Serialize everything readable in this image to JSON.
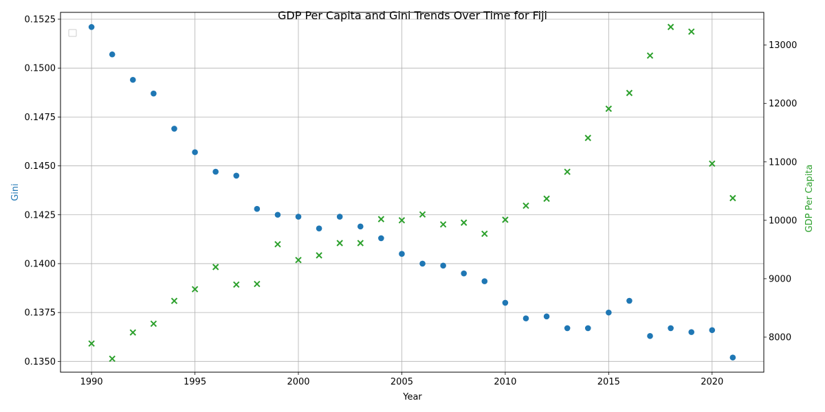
{
  "chart_data": {
    "type": "scatter",
    "title": "GDP Per Capita and Gini Trends Over Time for Fiji",
    "xlabel": "Year",
    "ylabel_left": "Gini",
    "ylabel_right": "GDP Per Capita",
    "xlim": [
      1988.5,
      2022.5
    ],
    "ylim_left": [
      0.13445,
      0.15285
    ],
    "ylim_right": [
      7400,
      13560
    ],
    "x_ticks": [
      1990,
      1995,
      2000,
      2005,
      2010,
      2015,
      2020
    ],
    "y_ticks_left": [
      "0.1350",
      "0.1375",
      "0.1400",
      "0.1425",
      "0.1450",
      "0.1475",
      "0.1500",
      "0.1525"
    ],
    "y_ticks_left_values": [
      0.135,
      0.1375,
      0.14,
      0.1425,
      0.145,
      0.1475,
      0.15,
      0.1525
    ],
    "y_ticks_right": [
      8000,
      9000,
      10000,
      11000,
      12000,
      13000
    ],
    "grid": true,
    "legend": "top-left (empty)",
    "colors": {
      "gini": "#1f77b4",
      "gdp": "#2ca02c"
    },
    "years": [
      1990,
      1991,
      1992,
      1993,
      1994,
      1995,
      1996,
      1997,
      1998,
      1999,
      2000,
      2001,
      2002,
      2003,
      2004,
      2005,
      2006,
      2007,
      2008,
      2009,
      2010,
      2011,
      2012,
      2013,
      2014,
      2015,
      2016,
      2017,
      2018,
      2019,
      2020,
      2021
    ],
    "series": [
      {
        "axis": "left",
        "marker": "circle",
        "values": [
          0.1521,
          0.1507,
          0.1494,
          0.1487,
          0.1469,
          0.1457,
          0.1447,
          0.1445,
          0.1428,
          0.1425,
          0.1424,
          0.1418,
          0.1424,
          0.1419,
          0.1413,
          0.1405,
          0.14,
          0.1399,
          0.1395,
          0.1391,
          0.138,
          0.1372,
          0.1373,
          0.1367,
          0.1367,
          0.1375,
          0.1381,
          0.1363,
          0.1367,
          0.1365,
          0.1366,
          0.1352
        ]
      },
      {
        "axis": "right",
        "marker": "x",
        "values": [
          7890,
          7630,
          8080,
          8230,
          8620,
          8820,
          9200,
          8900,
          8910,
          9590,
          9320,
          9400,
          9610,
          9610,
          10020,
          10000,
          10100,
          9930,
          9960,
          9770,
          10010,
          10250,
          10370,
          10830,
          11410,
          11910,
          12180,
          12820,
          13310,
          13230,
          10970,
          10380
        ]
      }
    ]
  }
}
